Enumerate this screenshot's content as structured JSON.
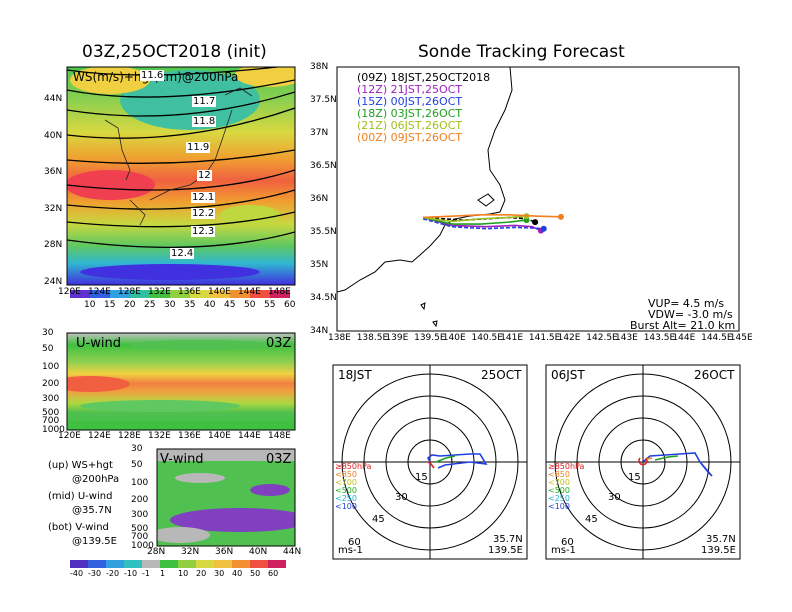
{
  "left_title": "03Z,25OCT2018 (init)",
  "right_title": "Sonde Tracking Forecast",
  "map_panel": {
    "label": "WS(m/s)+hgt(km)@200hPa",
    "contours": [
      "11.6",
      "11.7",
      "11.8",
      "11.9",
      "12",
      "12.1",
      "12.2",
      "12.3",
      "12.4"
    ],
    "lat_ticks": [
      "44N",
      "40N",
      "36N",
      "32N",
      "28N",
      "24N"
    ],
    "lon_ticks": [
      "120E",
      "124E",
      "128E",
      "132E",
      "136E",
      "140E",
      "144E",
      "148E"
    ],
    "colorbar": [
      "10",
      "15",
      "20",
      "25",
      "30",
      "35",
      "40",
      "45",
      "50",
      "55",
      "60"
    ]
  },
  "u_panel": {
    "label": "U-wind",
    "time": "03Z",
    "levels": [
      "30",
      "50",
      "100",
      "200",
      "300",
      "500",
      "700",
      "1000"
    ],
    "lon_ticks": [
      "120E",
      "124E",
      "128E",
      "132E",
      "136E",
      "140E",
      "144E",
      "148E"
    ]
  },
  "v_panel": {
    "label": "V-wind",
    "time": "03Z",
    "levels": [
      "30",
      "50",
      "100",
      "200",
      "300",
      "500",
      "700",
      "1000"
    ],
    "lat_ticks": [
      "28N",
      "32N",
      "36N",
      "40N",
      "44N"
    ],
    "colorbar": [
      "-40",
      "-30",
      "-20",
      "-10",
      "-1",
      "1",
      "10",
      "20",
      "30",
      "40",
      "50",
      "60"
    ]
  },
  "notes": [
    {
      "a": "(up) WS+hgt",
      "b": "@200hPa"
    },
    {
      "a": "(mid) U-wind",
      "b": "@35.7N"
    },
    {
      "a": "(bot) V-wind",
      "b": "@139.5E"
    }
  ],
  "track": {
    "lat_ticks": [
      "38N",
      "37.5N",
      "37N",
      "36.5N",
      "36N",
      "35.5N",
      "35N",
      "34.5N",
      "34N"
    ],
    "lon_ticks": [
      "138E",
      "138.5E",
      "139E",
      "139.5E",
      "140E",
      "140.5E",
      "141E",
      "141.5E",
      "142E",
      "142.5E",
      "143E",
      "143.5E",
      "144E",
      "144.5E",
      "145E"
    ],
    "legend": [
      {
        "text": "(09Z) 18JST,25OCT2018",
        "color": "#000000"
      },
      {
        "text": "(12Z) 21JST,25OCT",
        "color": "#a020c0"
      },
      {
        "text": "(15Z) 00JST,26OCT",
        "color": "#2040e0"
      },
      {
        "text": "(18Z) 03JST,26OCT",
        "color": "#20a020"
      },
      {
        "text": "(21Z) 06JST,26OCT",
        "color": "#a0c020"
      },
      {
        "text": "(00Z) 09JST,26OCT",
        "color": "#f08020"
      }
    ],
    "stats": [
      "VUP= 4.5 m/s",
      "VDW= -3.0 m/s",
      "Burst Alt= 21.0 km"
    ]
  },
  "hodographs": [
    {
      "time": "18JST",
      "date": "25OCT",
      "rings": [
        "15",
        "30",
        "45",
        "60"
      ],
      "unit": "ms-1",
      "lat": "35.7N",
      "lon": "139.5E",
      "levels": [
        {
          "t": "≥850hPa",
          "c": "#e02020"
        },
        {
          "t": "<850",
          "c": "#f08020"
        },
        {
          "t": "<700",
          "c": "#c0c020"
        },
        {
          "t": "<500",
          "c": "#20b020"
        },
        {
          "t": "<250",
          "c": "#20b0d0"
        },
        {
          "t": "<100",
          "c": "#2040e0"
        }
      ]
    },
    {
      "time": "06JST",
      "date": "26OCT",
      "rings": [
        "15",
        "30",
        "45",
        "60"
      ],
      "unit": "ms-1",
      "lat": "35.7N",
      "lon": "139.5E",
      "levels": [
        {
          "t": "≥850hPa",
          "c": "#e02020"
        },
        {
          "t": "<850",
          "c": "#f08020"
        },
        {
          "t": "<700",
          "c": "#c0c020"
        },
        {
          "t": "<500",
          "c": "#20b020"
        },
        {
          "t": "<250",
          "c": "#20b0d0"
        },
        {
          "t": "<100",
          "c": "#2040e0"
        }
      ]
    }
  ],
  "chart_data": [
    {
      "type": "line",
      "title": "Sonde Tracking Forecast",
      "xlim": [
        138,
        145
      ],
      "ylim": [
        34,
        38
      ],
      "series": [
        {
          "name": "(09Z) 18JST,25OCT2018",
          "x": [
            139.5,
            140.2,
            140.6,
            141.0,
            141.3,
            141.45
          ],
          "y": [
            35.72,
            35.68,
            35.7,
            35.72,
            35.7,
            35.65
          ]
        },
        {
          "name": "(12Z) 21JST,25OCT",
          "x": [
            139.5,
            140.0,
            140.6,
            141.1,
            141.4,
            141.55
          ],
          "y": [
            35.72,
            35.6,
            35.58,
            35.6,
            35.58,
            35.52
          ]
        },
        {
          "name": "(15Z) 00JST,26OCT",
          "x": [
            139.5,
            140.0,
            140.6,
            141.1,
            141.4,
            141.6
          ],
          "y": [
            35.7,
            35.58,
            35.55,
            35.57,
            35.56,
            35.55
          ]
        },
        {
          "name": "(18Z) 03JST,26OCT",
          "x": [
            139.5,
            140.0,
            140.5,
            141.0,
            141.3
          ],
          "y": [
            35.72,
            35.62,
            35.62,
            35.65,
            35.68
          ]
        },
        {
          "name": "(21Z) 06JST,26OCT",
          "x": [
            139.5,
            140.0,
            140.5,
            141.0,
            141.3
          ],
          "y": [
            35.72,
            35.66,
            35.7,
            35.72,
            35.74
          ]
        },
        {
          "name": "(00Z) 09JST,26OCT",
          "x": [
            139.5,
            140.0,
            140.5,
            141.0,
            141.5,
            141.9
          ],
          "y": [
            35.72,
            35.74,
            35.76,
            35.76,
            35.74,
            35.73
          ]
        }
      ]
    }
  ]
}
